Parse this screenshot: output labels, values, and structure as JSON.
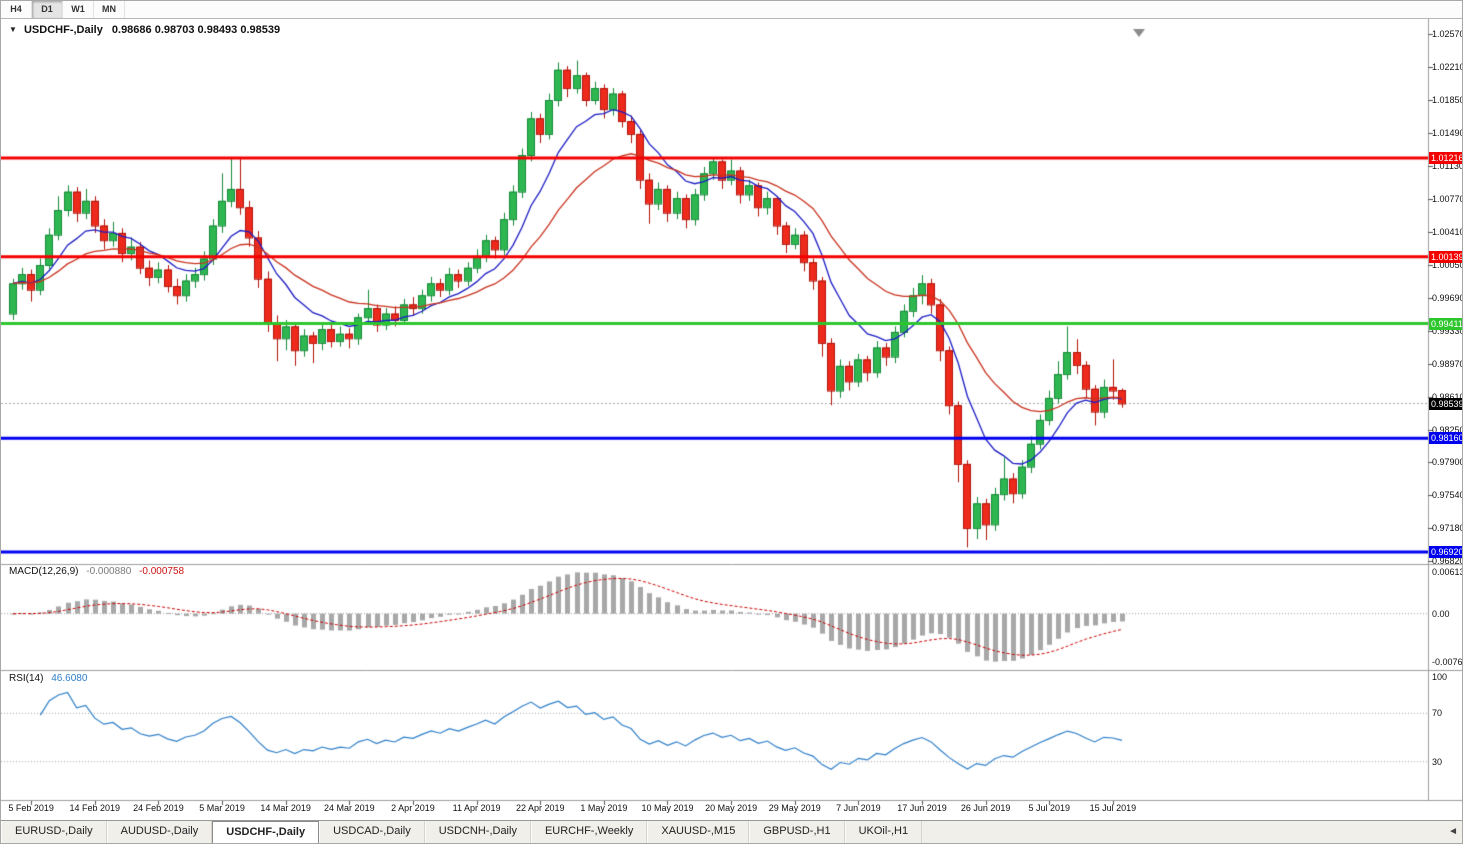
{
  "toolbar": {
    "timeframes": [
      {
        "label": "H4",
        "active": false
      },
      {
        "label": "D1",
        "active": true
      },
      {
        "label": "W1",
        "active": false
      },
      {
        "label": "MN",
        "active": false
      }
    ]
  },
  "title": {
    "marker": "▼",
    "symbol": "USDCHF-,Daily",
    "ohlc": "0.98686 0.98703 0.98493 0.98539"
  },
  "chart_data": {
    "type": "candlestick",
    "symbol": "USDCHF",
    "timeframe": "Daily",
    "y_axis": {
      "top_value": 1.0257,
      "step": 0.0036,
      "labels": [
        "1.02570",
        "1.02210",
        "1.01850",
        "1.01490",
        "1.01130",
        "1.00770",
        "1.00410",
        "1.00050",
        "0.99690",
        "0.99330",
        "0.98970",
        "0.98610",
        "0.98250",
        "0.97900",
        "0.97540",
        "0.97180",
        "0.96820"
      ]
    },
    "hlines": [
      {
        "price": 1.01216,
        "label": "1.01216",
        "color": "#f40000"
      },
      {
        "price": 1.00139,
        "label": "1.00139",
        "color": "#f40000"
      },
      {
        "price": 0.99411,
        "label": "0.99411",
        "color": "#2dc62d"
      },
      {
        "price": 0.9816,
        "label": "0.98160",
        "color": "#0000f0"
      },
      {
        "price": 0.9692,
        "label": "0.96920",
        "color": "#0000f0"
      }
    ],
    "current_price": {
      "value": 0.98539,
      "label": "0.98539",
      "box_color": "#000000"
    },
    "x_labels": [
      "5 Feb 2019",
      "14 Feb 2019",
      "24 Feb 2019",
      "5 Mar 2019",
      "14 Mar 2019",
      "24 Mar 2019",
      "2 Apr 2019",
      "11 Apr 2019",
      "22 Apr 2019",
      "1 May 2019",
      "10 May 2019",
      "20 May 2019",
      "29 May 2019",
      "7 Jun 2019",
      "17 Jun 2019",
      "26 Jun 2019",
      "5 Jul 2019",
      "15 Jul 2019"
    ],
    "candles": [
      [
        0.9952,
        0.999,
        0.9945,
        0.9985
      ],
      [
        0.9985,
        1.0002,
        0.9978,
        0.9995
      ],
      [
        0.9995,
        1.0,
        0.9965,
        0.9978
      ],
      [
        0.9978,
        1.0012,
        0.9972,
        1.0005
      ],
      [
        1.0005,
        1.0045,
        1.0,
        1.0038
      ],
      [
        1.0038,
        1.008,
        1.0032,
        1.0065
      ],
      [
        1.0065,
        1.0092,
        1.0058,
        1.0085
      ],
      [
        1.0085,
        1.009,
        1.0052,
        1.0062
      ],
      [
        1.0062,
        1.0088,
        1.0055,
        1.0075
      ],
      [
        1.0075,
        1.008,
        1.004,
        1.0048
      ],
      [
        1.0048,
        1.0055,
        1.0022,
        1.0032
      ],
      [
        1.0032,
        1.0052,
        1.0025,
        1.004
      ],
      [
        1.004,
        1.0045,
        1.0008,
        1.0018
      ],
      [
        1.0018,
        1.0035,
        1.001,
        1.0025
      ],
      [
        1.0025,
        1.003,
        0.9995,
        1.0002
      ],
      [
        1.0002,
        1.001,
        0.9982,
        0.9992
      ],
      [
        0.9992,
        1.0008,
        0.9985,
        1.0
      ],
      [
        1.0,
        1.0005,
        0.9975,
        0.9982
      ],
      [
        0.9982,
        0.999,
        0.9962,
        0.9972
      ],
      [
        0.9972,
        0.9995,
        0.9965,
        0.9988
      ],
      [
        0.9988,
        1.0002,
        0.998,
        0.9995
      ],
      [
        0.9995,
        1.002,
        0.9988,
        1.0012
      ],
      [
        1.0012,
        1.0055,
        1.0005,
        1.0048
      ],
      [
        1.0048,
        1.0105,
        1.004,
        1.0075
      ],
      [
        1.0075,
        1.0121,
        1.0068,
        1.0088
      ],
      [
        1.0088,
        1.0122,
        1.006,
        1.0068
      ],
      [
        1.0068,
        1.0075,
        1.0025,
        1.0035
      ],
      [
        1.0035,
        1.0042,
        0.998,
        0.999
      ],
      [
        0.999,
        0.9998,
        0.9932,
        0.9942
      ],
      [
        0.9942,
        0.995,
        0.99,
        0.9925
      ],
      [
        0.9925,
        0.9945,
        0.9912,
        0.9938
      ],
      [
        0.9938,
        0.994,
        0.9895,
        0.9912
      ],
      [
        0.9912,
        0.9935,
        0.9905,
        0.9928
      ],
      [
        0.9928,
        0.9932,
        0.9898,
        0.992
      ],
      [
        0.992,
        0.9942,
        0.9912,
        0.9935
      ],
      [
        0.9935,
        0.994,
        0.9915,
        0.9922
      ],
      [
        0.9922,
        0.9938,
        0.9916,
        0.993
      ],
      [
        0.993,
        0.9936,
        0.9914,
        0.9925
      ],
      [
        0.9925,
        0.9952,
        0.9918,
        0.9948
      ],
      [
        0.9948,
        0.9978,
        0.994,
        0.9958
      ],
      [
        0.9958,
        0.9962,
        0.9932,
        0.994
      ],
      [
        0.994,
        0.9958,
        0.9934,
        0.9952
      ],
      [
        0.9952,
        0.996,
        0.9938,
        0.9945
      ],
      [
        0.9945,
        0.9968,
        0.994,
        0.9962
      ],
      [
        0.9962,
        0.997,
        0.995,
        0.9958
      ],
      [
        0.9958,
        0.9978,
        0.9952,
        0.9972
      ],
      [
        0.9972,
        0.9992,
        0.9965,
        0.9985
      ],
      [
        0.9985,
        0.999,
        0.997,
        0.9978
      ],
      [
        0.9978,
        1.0002,
        0.9972,
        0.9995
      ],
      [
        0.9995,
        1.0,
        0.998,
        0.9988
      ],
      [
        0.9988,
        1.0008,
        0.9982,
        1.0002
      ],
      [
        1.0002,
        1.0022,
        0.9996,
        1.0015
      ],
      [
        1.0015,
        1.0038,
        1.0008,
        1.0032
      ],
      [
        1.0032,
        1.0036,
        1.0012,
        1.0022
      ],
      [
        1.0022,
        1.0062,
        1.0016,
        1.0055
      ],
      [
        1.0055,
        1.0092,
        1.0048,
        1.0085
      ],
      [
        1.0085,
        1.0132,
        1.0078,
        1.0125
      ],
      [
        1.0125,
        1.0172,
        1.0118,
        1.0165
      ],
      [
        1.0165,
        1.017,
        1.0138,
        1.0148
      ],
      [
        1.0148,
        1.0192,
        1.0142,
        1.0185
      ],
      [
        1.0185,
        1.0226,
        1.0178,
        1.0218
      ],
      [
        1.0218,
        1.0222,
        1.0188,
        1.0198
      ],
      [
        1.0198,
        1.0228,
        1.0192,
        1.0212
      ],
      [
        1.0212,
        1.0215,
        1.0178,
        1.0185
      ],
      [
        1.0185,
        1.0205,
        1.018,
        1.0198
      ],
      [
        1.0198,
        1.0202,
        1.0165,
        1.0175
      ],
      [
        1.0175,
        1.0198,
        1.0168,
        1.0192
      ],
      [
        1.0192,
        1.0195,
        1.0155,
        1.0162
      ],
      [
        1.0162,
        1.0168,
        1.0138,
        1.0148
      ],
      [
        1.0148,
        1.0152,
        1.0088,
        1.0098
      ],
      [
        1.0098,
        1.0105,
        1.005,
        1.0072
      ],
      [
        1.0072,
        1.0095,
        1.0065,
        1.0088
      ],
      [
        1.0088,
        1.0092,
        1.0052,
        1.0062
      ],
      [
        1.0062,
        1.0085,
        1.0055,
        1.0078
      ],
      [
        1.0078,
        1.0082,
        1.0045,
        1.0055
      ],
      [
        1.0055,
        1.0088,
        1.0048,
        1.0082
      ],
      [
        1.0082,
        1.0112,
        1.0075,
        1.0105
      ],
      [
        1.0105,
        1.0122,
        1.0098,
        1.0118
      ],
      [
        1.0118,
        1.012,
        1.0088,
        1.0098
      ],
      [
        1.0098,
        1.012,
        1.0092,
        1.0108
      ],
      [
        1.0108,
        1.0112,
        1.0072,
        1.0082
      ],
      [
        1.0082,
        1.0098,
        1.0075,
        1.0092
      ],
      [
        1.0092,
        1.0095,
        1.0058,
        1.0068
      ],
      [
        1.0068,
        1.0085,
        1.006,
        1.0078
      ],
      [
        1.0078,
        1.008,
        1.0038,
        1.0048
      ],
      [
        1.0048,
        1.0052,
        1.0018,
        1.0028
      ],
      [
        1.0028,
        1.0045,
        1.0022,
        1.0038
      ],
      [
        1.0038,
        1.0042,
        0.9998,
        1.0008
      ],
      [
        1.0008,
        1.0012,
        0.9978,
        0.9988
      ],
      [
        0.9988,
        0.9992,
        0.9905,
        0.992
      ],
      [
        0.992,
        0.9925,
        0.9852,
        0.9868
      ],
      [
        0.9868,
        0.9902,
        0.986,
        0.9895
      ],
      [
        0.9895,
        0.99,
        0.9868,
        0.9878
      ],
      [
        0.9878,
        0.9908,
        0.9872,
        0.9902
      ],
      [
        0.9902,
        0.9906,
        0.9878,
        0.9888
      ],
      [
        0.9888,
        0.9922,
        0.9882,
        0.9915
      ],
      [
        0.9915,
        0.992,
        0.9895,
        0.9905
      ],
      [
        0.9905,
        0.9938,
        0.9898,
        0.9932
      ],
      [
        0.9932,
        0.9962,
        0.9926,
        0.9955
      ],
      [
        0.9955,
        0.998,
        0.9948,
        0.9972
      ],
      [
        0.9972,
        0.9994,
        0.9962,
        0.9985
      ],
      [
        0.9985,
        0.999,
        0.9952,
        0.9962
      ],
      [
        0.9962,
        0.9968,
        0.99,
        0.9912
      ],
      [
        0.9912,
        0.9916,
        0.9842,
        0.9852
      ],
      [
        0.9852,
        0.9856,
        0.9768,
        0.9788
      ],
      [
        0.9788,
        0.9792,
        0.9697,
        0.9718
      ],
      [
        0.9718,
        0.9752,
        0.9706,
        0.9745
      ],
      [
        0.9745,
        0.975,
        0.9705,
        0.9722
      ],
      [
        0.9722,
        0.9762,
        0.9715,
        0.9755
      ],
      [
        0.9755,
        0.9795,
        0.9748,
        0.9772
      ],
      [
        0.9772,
        0.9778,
        0.9745,
        0.9756
      ],
      [
        0.9756,
        0.9792,
        0.975,
        0.9785
      ],
      [
        0.9785,
        0.9818,
        0.9778,
        0.981
      ],
      [
        0.981,
        0.9842,
        0.9804,
        0.9836
      ],
      [
        0.9836,
        0.9868,
        0.983,
        0.986
      ],
      [
        0.986,
        0.99,
        0.9854,
        0.9886
      ],
      [
        0.9886,
        0.9938,
        0.988,
        0.991
      ],
      [
        0.991,
        0.9924,
        0.9886,
        0.9896
      ],
      [
        0.9896,
        0.99,
        0.986,
        0.987
      ],
      [
        0.987,
        0.9874,
        0.983,
        0.9845
      ],
      [
        0.9845,
        0.988,
        0.9838,
        0.9872
      ],
      [
        0.9872,
        0.9902,
        0.9858,
        0.9868
      ],
      [
        0.98686,
        0.98703,
        0.98493,
        0.98539
      ]
    ]
  },
  "indicators": {
    "macd": {
      "name": "MACD(12,26,9)",
      "fast": 12,
      "slow": 26,
      "signal": 9,
      "value_main": "-0.000880",
      "value_signal": "-0.000758",
      "axis_max": "0.00613",
      "axis_zero": "0.00",
      "axis_min": "-0.0076123"
    },
    "rsi": {
      "name": "RSI(14)",
      "period": 14,
      "value": "46.6080",
      "axis": [
        {
          "v": 100,
          "label": "100"
        },
        {
          "v": 70,
          "label": "70"
        },
        {
          "v": 30,
          "label": "30"
        }
      ],
      "levels": [
        70,
        30
      ]
    }
  },
  "tabs": [
    {
      "label": "EURUSD-,Daily",
      "active": false
    },
    {
      "label": "AUDUSD-,Daily",
      "active": false
    },
    {
      "label": "USDCHF-,Daily",
      "active": true
    },
    {
      "label": "USDCAD-,Daily",
      "active": false
    },
    {
      "label": "USDCNH-,Daily",
      "active": false
    },
    {
      "label": "EURCHF-,Weekly",
      "active": false
    },
    {
      "label": "XAUUSD-,M15",
      "active": false
    },
    {
      "label": "GBPUSD-,H1",
      "active": false
    },
    {
      "label": "UKOil-,H1",
      "active": false
    }
  ],
  "tab_scroll_icon": "◄",
  "colors": {
    "up": "#2eb750",
    "up_border": "#168a38",
    "down": "#ee2a1c",
    "down_border": "#b01208",
    "ma_fast": "#1c1cc4",
    "ma_slow": "#c8321e",
    "macd_hist": "#a8a8a8",
    "macd_signal": "#cc0000",
    "rsi_line": "#2d7ec8",
    "grid": "#a0a0a0",
    "separator": "#9c9c9c",
    "shift_marker": "#8c8c8c"
  }
}
